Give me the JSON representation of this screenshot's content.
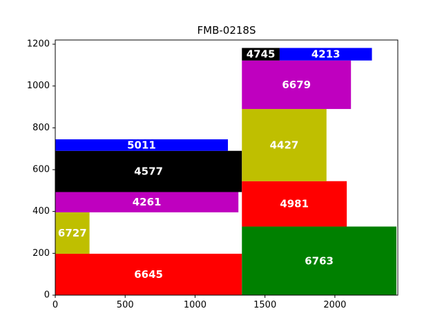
{
  "chart_data": {
    "type": "rect-packing",
    "title": "FMB-0218S",
    "xlabel": "",
    "ylabel": "",
    "xlim": [
      0,
      2450
    ],
    "ylim": [
      0,
      1220
    ],
    "xticks": [
      0,
      500,
      1000,
      1500,
      2000
    ],
    "yticks": [
      0,
      200,
      400,
      600,
      800,
      1000,
      1200
    ],
    "grid": false,
    "colors": {
      "red": "#ff0000",
      "olive": "#bfbf00",
      "magenta": "#bf00bf",
      "black": "#000000",
      "blue": "#0000ff",
      "green": "#008000"
    },
    "rects": [
      {
        "label": "6645",
        "x": 0,
        "y": 0,
        "w": 1335,
        "h": 198,
        "color": "#ff0000"
      },
      {
        "label": "6727",
        "x": 0,
        "y": 198,
        "w": 245,
        "h": 198,
        "color": "#bfbf00"
      },
      {
        "label": "4261",
        "x": 0,
        "y": 396,
        "w": 1310,
        "h": 97,
        "color": "#bf00bf"
      },
      {
        "label": "4577",
        "x": 0,
        "y": 493,
        "w": 1335,
        "h": 197,
        "color": "#000000"
      },
      {
        "label": "5011",
        "x": 0,
        "y": 690,
        "w": 1235,
        "h": 55,
        "color": "#0000ff"
      },
      {
        "label": "6763",
        "x": 1335,
        "y": 0,
        "w": 1105,
        "h": 328,
        "color": "#008000"
      },
      {
        "label": "4981",
        "x": 1335,
        "y": 328,
        "w": 750,
        "h": 217,
        "color": "#ff0000"
      },
      {
        "label": "4427",
        "x": 1335,
        "y": 545,
        "w": 605,
        "h": 345,
        "color": "#bfbf00"
      },
      {
        "label": "6679",
        "x": 1335,
        "y": 890,
        "w": 780,
        "h": 232,
        "color": "#bf00bf"
      },
      {
        "label": "4745",
        "x": 1335,
        "y": 1122,
        "w": 270,
        "h": 60,
        "color": "#000000"
      },
      {
        "label": "4213",
        "x": 1605,
        "y": 1122,
        "w": 660,
        "h": 60,
        "color": "#0000ff"
      }
    ]
  }
}
